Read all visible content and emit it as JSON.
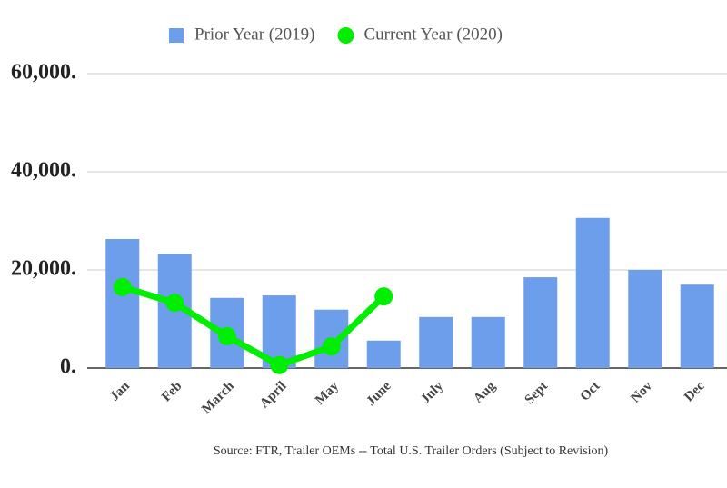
{
  "chart_data": {
    "type": "bar-line",
    "categories": [
      "Jan",
      "Feb",
      "March",
      "April",
      "May",
      "June",
      "July",
      "Aug",
      "Sept",
      "Oct",
      "Nov",
      "Dec"
    ],
    "series": [
      {
        "name": "Prior Year (2019)",
        "type": "bar",
        "color": "#6d9eeb",
        "values": [
          26300,
          23300,
          14300,
          14800,
          11900,
          5600,
          10400,
          10400,
          18500,
          30600,
          20000,
          17000
        ]
      },
      {
        "name": "Current Year (2020)",
        "type": "line",
        "color": "#00ee00",
        "values": [
          16500,
          13300,
          6500,
          600,
          4400,
          14600,
          null,
          null,
          null,
          null,
          null,
          null
        ]
      }
    ],
    "ylim": [
      0,
      60000
    ],
    "yticks": [
      {
        "value": 0,
        "label": "0."
      },
      {
        "value": 20000,
        "label": "20,000."
      },
      {
        "value": 40000,
        "label": "40,000."
      },
      {
        "value": 60000,
        "label": "60,000."
      }
    ],
    "grid": true,
    "legend": "top",
    "source": "Source: FTR, Trailer OEMs -- Total U.S. Trailer Orders (Subject to Revision)"
  }
}
